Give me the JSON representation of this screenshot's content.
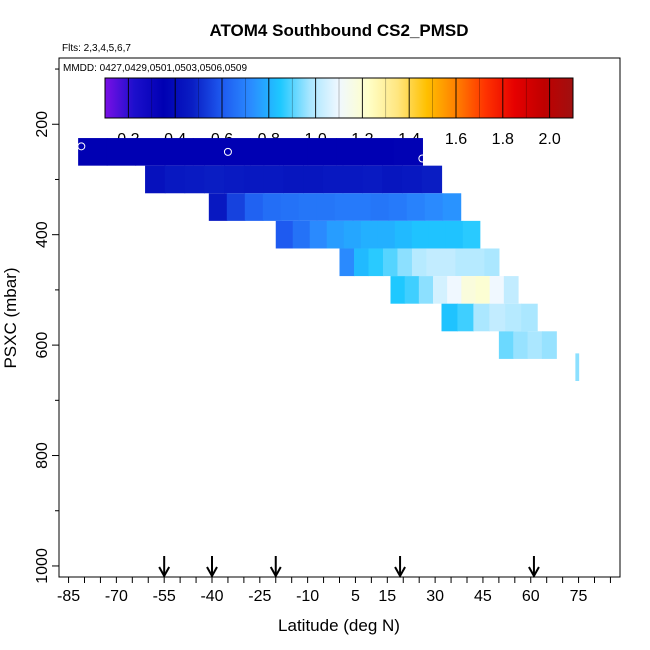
{
  "chart_data": {
    "type": "heatmap",
    "title": "ATOM4 Southbound CS2_PMSD",
    "flights_note": "Flts: 2,3,4,5,6,7",
    "dates_note": "MMDD: 0427,0429,0501,0503,0506,0509",
    "xlabel": "Latitude (deg N)",
    "ylabel": "PSXC (mbar)",
    "xlim": [
      -88,
      88
    ],
    "ylim": [
      1020,
      80
    ],
    "x_ticks": [
      -85,
      -70,
      -55,
      -40,
      -25,
      -10,
      5,
      15,
      30,
      45,
      60,
      75
    ],
    "x_tick_labels": [
      "-85",
      "-70",
      "-55",
      "-40",
      "-25",
      "-10",
      "5",
      "15",
      "30",
      "45",
      "60",
      "75"
    ],
    "y_ticks": [
      200,
      400,
      600,
      800,
      1000
    ],
    "y_tick_labels": [
      "200",
      "400",
      "600",
      "800",
      "1000"
    ],
    "colorbar": {
      "min": 0.1,
      "max": 2.1,
      "ticks": [
        0.2,
        0.4,
        0.6,
        0.8,
        1.0,
        1.2,
        1.4,
        1.6,
        1.8,
        2.0
      ],
      "tick_labels": [
        "0.2",
        "0.4",
        "0.6",
        "0.8",
        "1.0",
        "1.2",
        "1.4",
        "1.6",
        "1.8",
        "2.0"
      ],
      "colors": [
        "#7a0fe6",
        "#1c0fcc",
        "#0000b3",
        "#0a1ec4",
        "#1e5af0",
        "#2a8cff",
        "#1ec8ff",
        "#a8e6ff",
        "#f0f8ff",
        "#ffffc8",
        "#ffe680",
        "#ffc000",
        "#ff8000",
        "#ff3300",
        "#e60000",
        "#c00000",
        "#a01010"
      ]
    },
    "layers": [
      {
        "pressure_top": 225,
        "pressure_bottom": 275,
        "lat_start": -82,
        "lat_end": 26,
        "values": [
          0.35,
          0.35,
          0.35,
          0.35,
          0.35,
          0.35,
          0.35,
          0.35,
          0.35,
          0.35,
          0.35,
          0.36
        ]
      },
      {
        "pressure_top": 275,
        "pressure_bottom": 325,
        "lat_start": -61,
        "lat_end": 32,
        "values": [
          0.42,
          0.45,
          0.46,
          0.47,
          0.46,
          0.45,
          0.45,
          0.44,
          0.44,
          0.45,
          0.45,
          0.46,
          0.44,
          0.45,
          0.47
        ]
      },
      {
        "pressure_top": 325,
        "pressure_bottom": 375,
        "lat_start": -41,
        "lat_end": 38,
        "values": [
          0.45,
          0.55,
          0.62,
          0.65,
          0.66,
          0.67,
          0.67,
          0.68,
          0.68,
          0.67,
          0.68,
          0.7,
          0.72,
          0.74
        ]
      },
      {
        "pressure_top": 375,
        "pressure_bottom": 425,
        "lat_start": -20,
        "lat_end": 44,
        "values": [
          0.6,
          0.66,
          0.72,
          0.76,
          0.78,
          0.8,
          0.8,
          0.82,
          0.84,
          0.84,
          0.84,
          0.86
        ]
      },
      {
        "pressure_top": 425,
        "pressure_bottom": 475,
        "lat_start": 0,
        "lat_end": 50,
        "values": [
          0.72,
          0.82,
          0.86,
          0.9,
          0.95,
          1.0,
          1.02,
          1.02,
          1.0,
          1.0,
          0.98
        ]
      },
      {
        "pressure_top": 475,
        "pressure_bottom": 525,
        "lat_start": 16,
        "lat_end": 56,
        "values": [
          0.85,
          0.88,
          0.95,
          1.05,
          1.1,
          1.18,
          1.2,
          1.1,
          1.02
        ]
      },
      {
        "pressure_top": 525,
        "pressure_bottom": 575,
        "lat_start": 32,
        "lat_end": 62,
        "values": [
          0.84,
          0.88,
          0.98,
          1.02,
          1.0,
          0.98
        ]
      },
      {
        "pressure_top": 575,
        "pressure_bottom": 625,
        "lat_start": 50,
        "lat_end": 68,
        "values": [
          0.92,
          0.96,
          0.98,
          0.96
        ]
      },
      {
        "pressure_top": 615,
        "pressure_bottom": 665,
        "lat_start": 74,
        "lat_end": 75,
        "values": [
          0.95
        ]
      }
    ],
    "markers": [
      {
        "lat": -81,
        "pressure": 240
      },
      {
        "lat": -35,
        "pressure": 250
      },
      {
        "lat": 26,
        "pressure": 262
      }
    ],
    "arrows": [
      -55,
      -40,
      -20,
      19,
      61
    ]
  }
}
